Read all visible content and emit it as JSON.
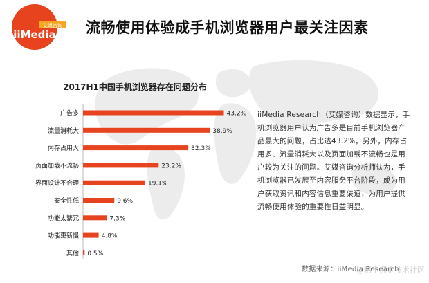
{
  "brand": {
    "logo_text": "iiMedia",
    "logo_sub": "艾媒咨询",
    "colors": {
      "primary": "#e8431f",
      "accent": "#f5a623"
    }
  },
  "headline": "流畅使用体验成手机浏览器用户最关注因素",
  "description": "iiMedia Research（艾媒咨询）数据显示，手机浏览器用户认为广告多是目前手机浏览器产品最大的问题，占比达43.2%，另外，内存占用多、流量消耗大以及页面加载不流畅也是用户较为关注的问题。艾媒咨询分析师认为，手机浏览器已发展至内容服务平台阶段，成为用户获取资讯和内容信息重要渠道，为用户提供流畅使用体验的重要性日益明显。",
  "source": "数据来源：iiMedia Research",
  "watermark": "@稀土掘金技术社区",
  "chart_data": {
    "type": "bar",
    "orientation": "horizontal",
    "title": "2017H1中国手机浏览器存在问题分布",
    "categories": [
      "广告多",
      "流量消耗大",
      "内存占用大",
      "页面加载不流畅",
      "界面设计不合理",
      "安全性低",
      "功能太繁冗",
      "功能更新慢",
      "其他"
    ],
    "values": [
      43.2,
      38.9,
      32.3,
      23.2,
      19.1,
      9.6,
      7.3,
      4.8,
      0.5
    ],
    "value_suffix": "%",
    "bar_color": "#e8431f",
    "xlim": [
      0,
      45
    ],
    "grid": false,
    "legend": "none"
  }
}
